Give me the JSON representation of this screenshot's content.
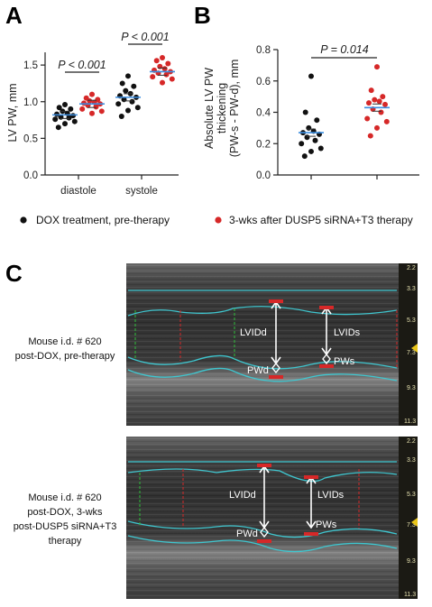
{
  "panels": {
    "a": "A",
    "b": "B",
    "c": "C"
  },
  "chart_data": [
    {
      "id": "A",
      "type": "scatter",
      "ylabel": "LV PW, mm",
      "ylim": [
        0.0,
        1.6
      ],
      "yticks": [
        "0.0",
        "0.5",
        "1.0",
        "1.5"
      ],
      "categories": [
        "diastole",
        "systole"
      ],
      "series": [
        {
          "group": "diastole",
          "color": "#111111",
          "values": [
            0.96,
            0.92,
            0.9,
            0.87,
            0.84,
            0.83,
            0.81,
            0.79,
            0.78,
            0.76,
            0.73,
            0.7,
            0.65
          ],
          "mean": 0.82
        },
        {
          "group": "diastole",
          "color": "#d62828",
          "values": [
            1.1,
            1.05,
            1.03,
            1.01,
            0.99,
            0.98,
            0.97,
            0.95,
            0.93,
            0.9,
            0.87,
            0.84
          ],
          "mean": 0.97
        },
        {
          "group": "systole",
          "color": "#111111",
          "values": [
            1.35,
            1.25,
            1.21,
            1.15,
            1.11,
            1.08,
            1.06,
            1.03,
            1.0,
            0.97,
            0.92,
            0.88,
            0.8
          ],
          "mean": 1.06
        },
        {
          "group": "systole",
          "color": "#d62828",
          "values": [
            1.6,
            1.56,
            1.52,
            1.48,
            1.45,
            1.43,
            1.41,
            1.39,
            1.37,
            1.34,
            1.31,
            1.26
          ],
          "mean": 1.41
        }
      ],
      "annotations": [
        "P < 0.001",
        "P < 0.001"
      ]
    },
    {
      "id": "B",
      "type": "scatter",
      "ylabel": [
        "Absolute LV PW",
        "thickening",
        "(PW-s - PW-d), mm"
      ],
      "ylim": [
        0.0,
        0.8
      ],
      "yticks": [
        "0.0",
        "0.2",
        "0.4",
        "0.6",
        "0.8"
      ],
      "series": [
        {
          "color": "#111111",
          "values": [
            0.63,
            0.4,
            0.35,
            0.3,
            0.28,
            0.27,
            0.26,
            0.24,
            0.22,
            0.2,
            0.17,
            0.15,
            0.12
          ],
          "mean": 0.27
        },
        {
          "color": "#d62828",
          "values": [
            0.69,
            0.54,
            0.5,
            0.48,
            0.47,
            0.46,
            0.45,
            0.42,
            0.4,
            0.36,
            0.34,
            0.3,
            0.25
          ],
          "mean": 0.43
        }
      ],
      "annotations": [
        "P = 0.014"
      ]
    }
  ],
  "legend": [
    {
      "label": "DOX treatment, pre-therapy",
      "color": "#111111"
    },
    {
      "label": "3-wks after DUSP5 siRNA+T3 therapy",
      "color": "#d62828"
    }
  ],
  "echo": [
    {
      "caption": [
        "Mouse i.d. # 620",
        "post-DOX, pre-therapy"
      ],
      "labels": {
        "lvidd": "LVIDd",
        "lvids": "LVIDs",
        "pwd": "PWd",
        "pws": "PWs"
      },
      "scale": [
        "2.2",
        "3.3",
        "5.3",
        "7.3",
        "9.3",
        "11.3"
      ]
    },
    {
      "caption": [
        "Mouse i.d. # 620",
        "post-DOX, 3-wks",
        "post-DUSP5 siRNA+T3",
        "therapy"
      ],
      "labels": {
        "lvidd": "LVIDd",
        "lvids": "LVIDs",
        "pwd": "PWd",
        "pws": "PWs"
      },
      "scale": [
        "2.2",
        "3.3",
        "5.3",
        "7.3",
        "9.3",
        "11.3"
      ]
    }
  ],
  "colors": {
    "black": "#111111",
    "red": "#d62828",
    "mean": "#3a8de0",
    "trace": "#3fc6cf",
    "marker": "#e8c419"
  }
}
